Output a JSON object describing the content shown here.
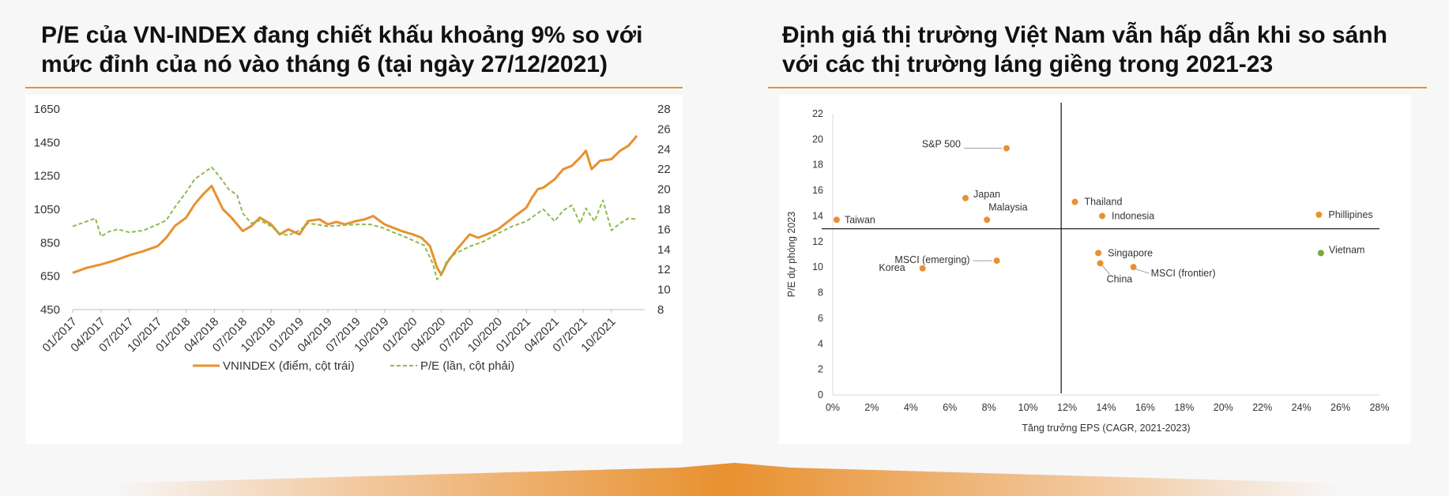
{
  "left_panel": {
    "title_line1": "P/E của VN-INDEX đang chiết khấu khoảng 9% so với",
    "title_line2": "mức đỉnh của nó vào tháng 6 (tại ngày 27/12/2021)"
  },
  "right_panel": {
    "title_line1": "Định giá thị trường Việt Nam vẫn hấp dẫn khi so sánh",
    "title_line2": "với các thị trường láng giềng trong 2021-23"
  },
  "colors": {
    "accent": "#e8912f",
    "vnindex_line": "#e8912f",
    "pe_line": "#8dbb4f",
    "vietnam_point": "#79a83e"
  },
  "chart_data": [
    {
      "type": "line",
      "ylim_left": [
        450,
        1650
      ],
      "yticks_left": [
        "1650",
        "1450",
        "1250",
        "1050",
        "850",
        "650",
        "450"
      ],
      "ylim_right": [
        8,
        28
      ],
      "yticks_right": [
        "28",
        "26",
        "24",
        "22",
        "20",
        "18",
        "16",
        "14",
        "12",
        "10",
        "8"
      ],
      "categories": [
        "01/2017",
        "04/2017",
        "07/2017",
        "10/2017",
        "01/2018",
        "04/2018",
        "07/2018",
        "10/2018",
        "01/2019",
        "04/2019",
        "07/2019",
        "10/2019",
        "01/2020",
        "04/2020",
        "07/2020",
        "10/2020",
        "01/2021",
        "04/2021",
        "07/2021",
        "10/2021"
      ],
      "legend_position": "bottom",
      "series": [
        {
          "name": "VNINDEX (điểm, cột trái)",
          "axis": "left",
          "style": "solid",
          "x": [
            0,
            0.5,
            1,
            1.5,
            2,
            2.5,
            3,
            3.3,
            3.6,
            4,
            4.3,
            4.6,
            4.9,
            5.1,
            5.3,
            5.6,
            6,
            6.3,
            6.6,
            7,
            7.3,
            7.6,
            8,
            8.3,
            8.7,
            9,
            9.3,
            9.6,
            10,
            10.3,
            10.6,
            11,
            11.3,
            11.6,
            12,
            12.3,
            12.6,
            12.85,
            13,
            13.2,
            13.5,
            13.8,
            14,
            14.3,
            14.6,
            15,
            15.3,
            15.6,
            16,
            16.2,
            16.4,
            16.6,
            17,
            17.3,
            17.6,
            17.9,
            18.1,
            18.3,
            18.6,
            19,
            19.3,
            19.6,
            19.9
          ],
          "values": [
            670,
            700,
            720,
            745,
            775,
            800,
            830,
            880,
            950,
            1000,
            1080,
            1140,
            1190,
            1120,
            1050,
            1000,
            920,
            950,
            1000,
            960,
            900,
            930,
            900,
            980,
            990,
            960,
            975,
            960,
            980,
            990,
            1010,
            960,
            940,
            920,
            900,
            880,
            830,
            700,
            660,
            730,
            800,
            860,
            900,
            880,
            900,
            930,
            970,
            1010,
            1060,
            1120,
            1170,
            1180,
            1230,
            1290,
            1310,
            1360,
            1400,
            1290,
            1340,
            1350,
            1400,
            1430,
            1490
          ]
        },
        {
          "name": "P/E (lần, cột phải)",
          "axis": "right",
          "style": "dashed",
          "x": [
            0,
            0.4,
            0.8,
            1,
            1.3,
            1.6,
            2,
            2.5,
            3,
            3.3,
            3.6,
            4,
            4.3,
            4.6,
            4.9,
            5.2,
            5.5,
            5.8,
            6,
            6.3,
            6.6,
            7,
            7.3,
            7.6,
            8,
            8.3,
            8.6,
            9,
            9.5,
            10,
            10.5,
            11,
            11.3,
            11.6,
            12,
            12.4,
            12.7,
            12.85,
            13,
            13.2,
            13.5,
            14,
            14.5,
            15,
            15.5,
            16,
            16.3,
            16.6,
            17,
            17.3,
            17.6,
            17.9,
            18.1,
            18.4,
            18.7,
            19,
            19.3,
            19.6,
            19.9
          ],
          "values": [
            16.3,
            16.7,
            17.1,
            15.3,
            15.8,
            16.0,
            15.7,
            15.9,
            16.5,
            16.9,
            18.2,
            19.7,
            21.0,
            21.6,
            22.2,
            21.2,
            20.0,
            19.4,
            17.6,
            16.6,
            16.9,
            16.3,
            15.6,
            15.4,
            15.9,
            16.6,
            16.5,
            16.3,
            16.4,
            16.5,
            16.5,
            16.1,
            15.7,
            15.4,
            14.9,
            14.4,
            12.6,
            11.0,
            11.5,
            12.9,
            13.6,
            14.3,
            14.8,
            15.6,
            16.3,
            16.8,
            17.4,
            18.0,
            16.8,
            17.9,
            18.4,
            16.6,
            18.1,
            16.8,
            18.9,
            15.9,
            16.6,
            17.1,
            17.0
          ]
        }
      ]
    },
    {
      "type": "scatter",
      "xlabel": "Tăng trưởng EPS (CAGR, 2021-2023)",
      "ylabel": "P/E dự phóng 2023",
      "xlim": [
        0,
        28
      ],
      "ylim": [
        0,
        22
      ],
      "xticks": [
        "0%",
        "2%",
        "4%",
        "6%",
        "8%",
        "10%",
        "12%",
        "14%",
        "16%",
        "18%",
        "20%",
        "22%",
        "24%",
        "26%",
        "28%"
      ],
      "yticks": [
        "0",
        "2",
        "4",
        "6",
        "8",
        "10",
        "12",
        "14",
        "16",
        "18",
        "20",
        "22"
      ],
      "reference_lines": {
        "x": 11.7,
        "y": 13.0
      },
      "points": [
        {
          "label": "S&P 500",
          "x": 8.9,
          "y": 19.3
        },
        {
          "label": "Japan",
          "x": 6.8,
          "y": 15.4
        },
        {
          "label": "Malaysia",
          "x": 7.9,
          "y": 13.7
        },
        {
          "label": "Taiwan",
          "x": 0.2,
          "y": 13.7
        },
        {
          "label": "Thailand",
          "x": 12.4,
          "y": 15.1
        },
        {
          "label": "Indonesia",
          "x": 13.8,
          "y": 14.0
        },
        {
          "label": "Phillipines",
          "x": 24.9,
          "y": 14.1
        },
        {
          "label": "Vietnam",
          "x": 25.0,
          "y": 11.1
        },
        {
          "label": "Singapore",
          "x": 13.6,
          "y": 11.1
        },
        {
          "label": "China",
          "x": 13.7,
          "y": 10.3
        },
        {
          "label": "MSCI (frontier)",
          "x": 15.4,
          "y": 10.0
        },
        {
          "label": "MSCI (emerging)",
          "x": 8.4,
          "y": 10.5
        },
        {
          "label": "Korea",
          "x": 4.6,
          "y": 9.9
        }
      ]
    }
  ]
}
